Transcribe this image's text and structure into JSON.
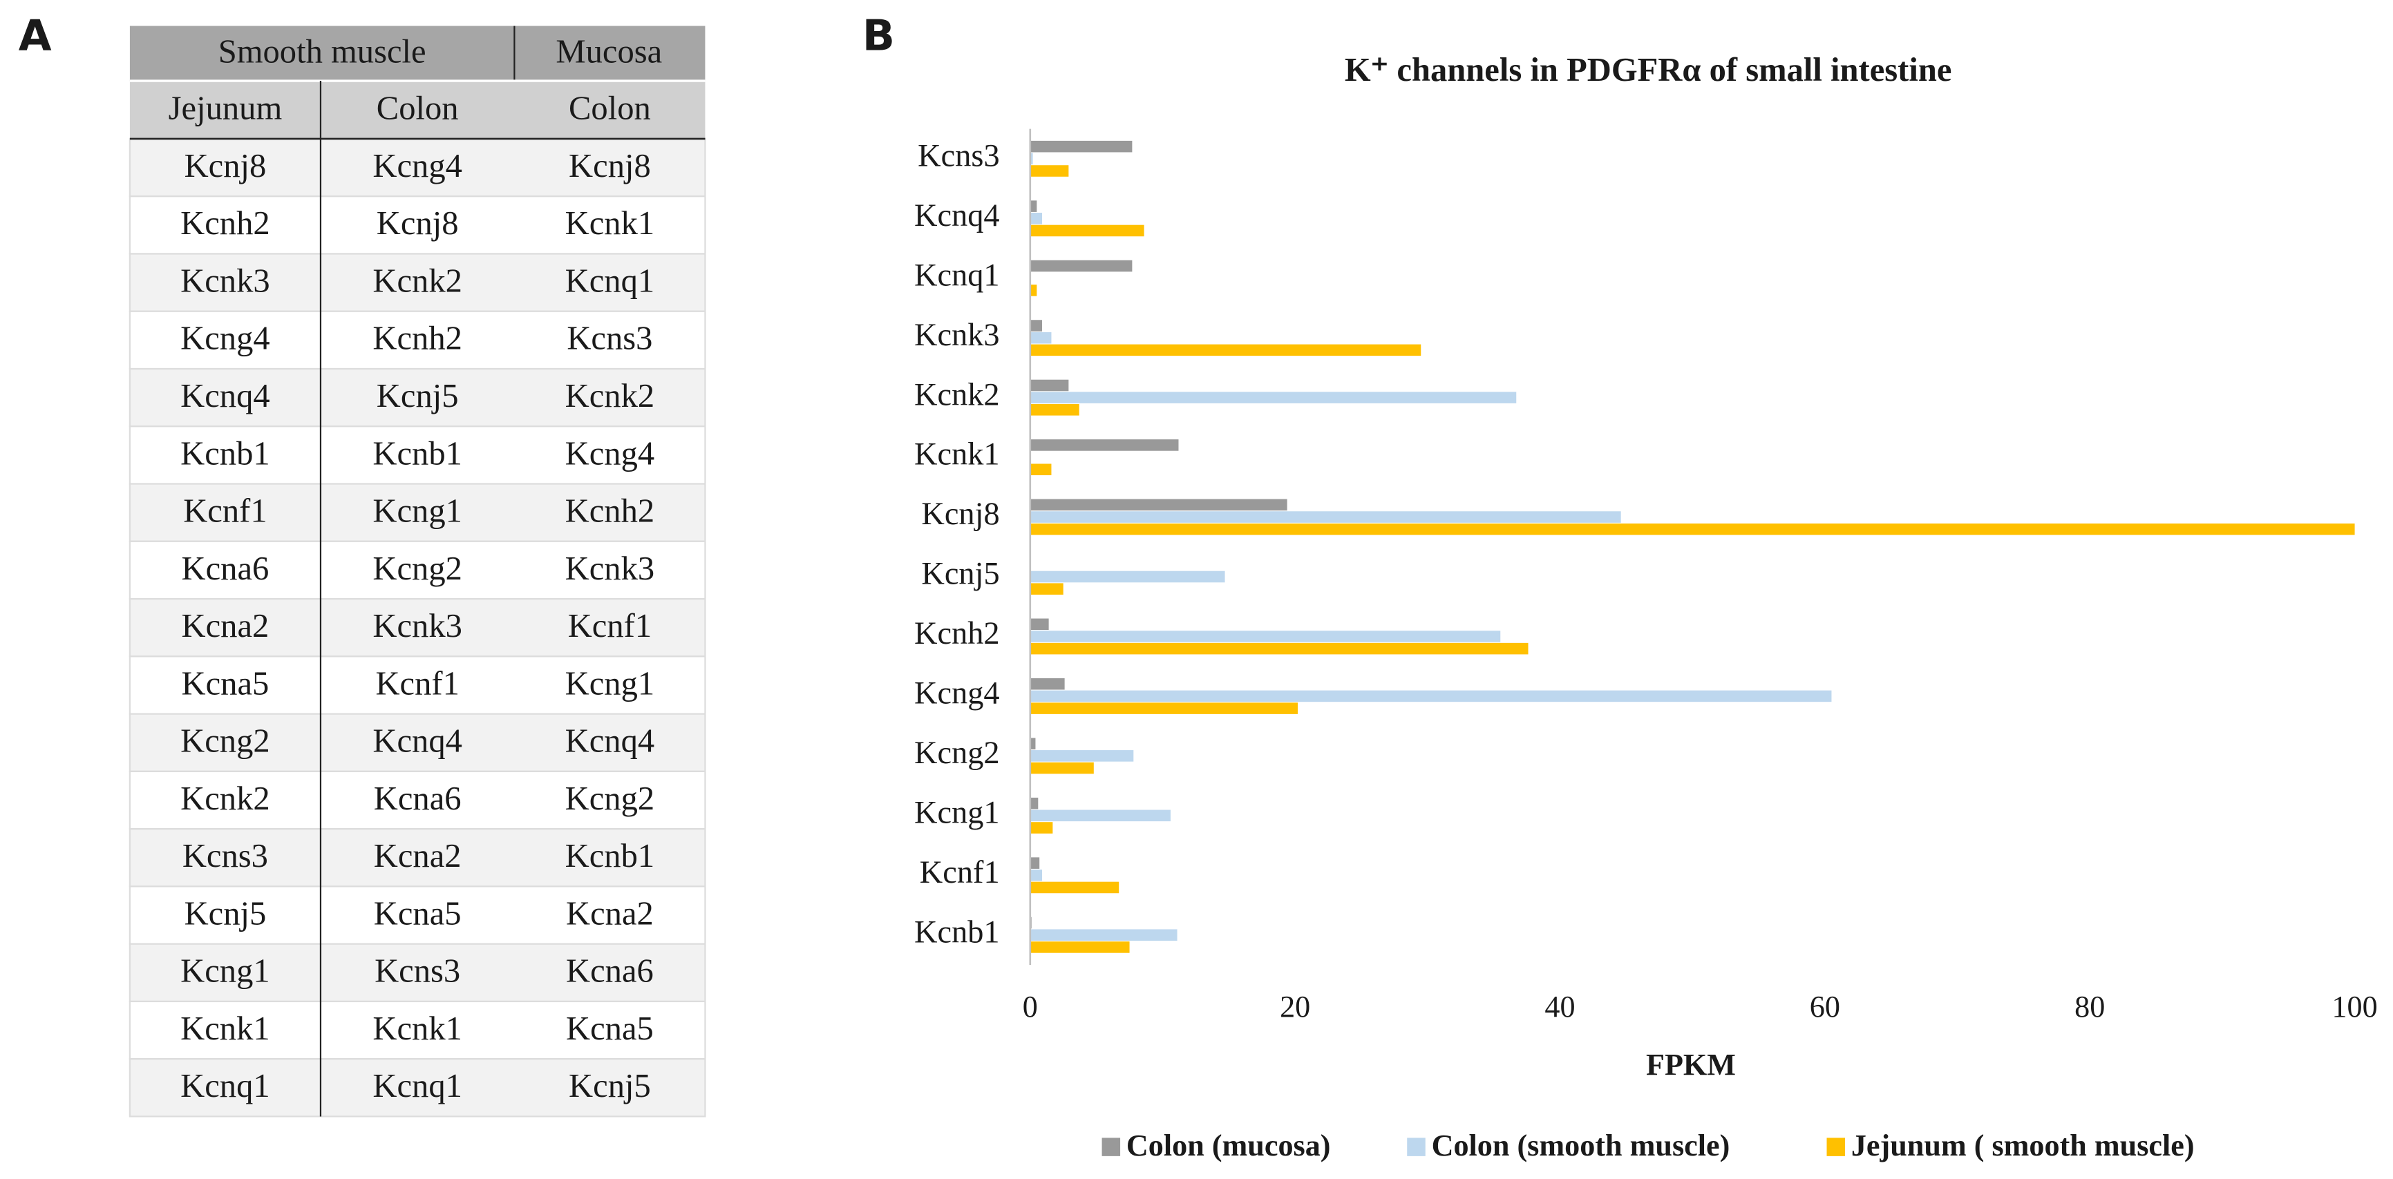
{
  "panel_a": {
    "label": "A",
    "table": {
      "header_top": [
        "Smooth muscle",
        "Mucosa"
      ],
      "header_sub": [
        "Jejunum",
        "Colon",
        "Colon"
      ],
      "rows": [
        [
          "Kcnj8",
          "Kcng4",
          "Kcnj8"
        ],
        [
          "Kcnh2",
          "Kcnj8",
          "Kcnk1"
        ],
        [
          "Kcnk3",
          "Kcnk2",
          "Kcnq1"
        ],
        [
          "Kcng4",
          "Kcnh2",
          "Kcns3"
        ],
        [
          "Kcnq4",
          "Kcnj5",
          "Kcnk2"
        ],
        [
          "Kcnb1",
          "Kcnb1",
          "Kcng4"
        ],
        [
          "Kcnf1",
          "Kcng1",
          "Kcnh2"
        ],
        [
          "Kcna6",
          "Kcng2",
          "Kcnk3"
        ],
        [
          "Kcna2",
          "Kcnk3",
          "Kcnf1"
        ],
        [
          "Kcna5",
          "Kcnf1",
          "Kcng1"
        ],
        [
          "Kcng2",
          "Kcnq4",
          "Kcnq4"
        ],
        [
          "Kcnk2",
          "Kcna6",
          "Kcng2"
        ],
        [
          "Kcns3",
          "Kcna2",
          "Kcnb1"
        ],
        [
          "Kcnj5",
          "Kcna5",
          "Kcna2"
        ],
        [
          "Kcng1",
          "Kcns3",
          "Kcna6"
        ],
        [
          "Kcnk1",
          "Kcnk1",
          "Kcna5"
        ],
        [
          "Kcnq1",
          "Kcnq1",
          "Kcnj5"
        ]
      ]
    }
  },
  "panel_b": {
    "label": "B"
  },
  "chart_data": {
    "type": "bar",
    "orientation": "horizontal",
    "title": "K⁺ channels in PDGFRα of small intestine",
    "x_label": "FPKM",
    "categories": [
      "Kcns3",
      "Kcnq4",
      "Kcnq1",
      "Kcnk3",
      "Kcnk2",
      "Kcnk1",
      "Kcnj8",
      "Kcnj5",
      "Kcnh2",
      "Kcng4",
      "Kcng2",
      "Kcng1",
      "Kcnf1",
      "Kcnb1"
    ],
    "series": [
      {
        "name": "Colon (mucosa)",
        "color": "#999999",
        "values": [
          7.7,
          0.5,
          7.7,
          0.9,
          2.9,
          11.2,
          19.4,
          0,
          1.4,
          2.6,
          0.4,
          0.6,
          0.7,
          0.1
        ]
      },
      {
        "name": "Colon (smooth muscle)",
        "color": "#bdd7ee",
        "values": [
          0.2,
          0.9,
          0,
          1.6,
          36.7,
          0,
          44.6,
          14.7,
          35.5,
          60.5,
          7.8,
          10.6,
          0.9,
          11.1
        ]
      },
      {
        "name": "Jejunum ( smooth muscle)",
        "color": "#ffc000",
        "values": [
          2.9,
          8.6,
          0.5,
          29.5,
          3.7,
          1.6,
          100,
          2.5,
          37.6,
          20.2,
          4.8,
          1.7,
          6.7,
          7.5
        ]
      }
    ],
    "xlim": [
      0,
      100
    ],
    "xticks": [
      0,
      20,
      40,
      60,
      80,
      100
    ],
    "grid": false,
    "legend": "bottom"
  }
}
